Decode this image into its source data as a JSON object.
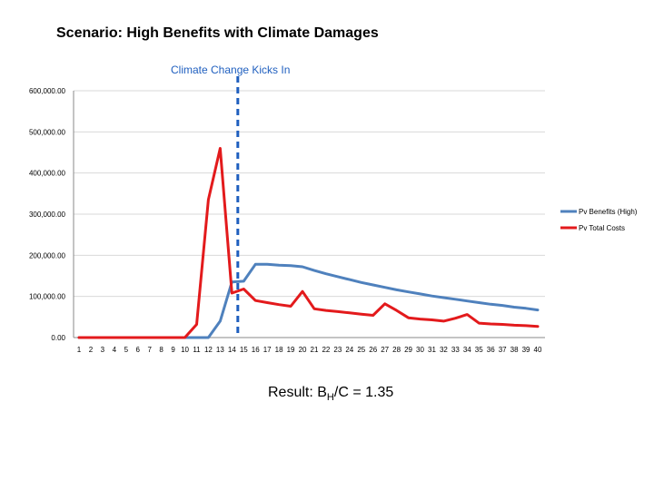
{
  "title": "Scenario: High Benefits with Climate Damages",
  "annotation": {
    "label": "Climate Change Kicks In",
    "x": 14.5
  },
  "result": {
    "prefix": "Result: B",
    "subscript": "H",
    "suffix": "/C = 1.35"
  },
  "colors": {
    "benefits": "#4f81bd",
    "costs": "#e31a1c",
    "annotation": "#1f5fbf",
    "grid": "#d9d9d9"
  },
  "chart_data": {
    "type": "line",
    "title": "Scenario: High Benefits with Climate Damages",
    "xlabel": "",
    "ylabel": "",
    "x": [
      1,
      2,
      3,
      4,
      5,
      6,
      7,
      8,
      9,
      10,
      11,
      12,
      13,
      14,
      15,
      16,
      17,
      18,
      19,
      20,
      21,
      22,
      23,
      24,
      25,
      26,
      27,
      28,
      29,
      30,
      31,
      32,
      33,
      34,
      35,
      36,
      37,
      38,
      39,
      40
    ],
    "ylim": [
      0,
      600000
    ],
    "yticks": [
      0,
      100000,
      200000,
      300000,
      400000,
      500000,
      600000
    ],
    "ytick_labels": [
      "0.00",
      "100,000.00",
      "200,000.00",
      "300,000.00",
      "400,000.00",
      "500,000.00",
      "600,000.00"
    ],
    "xtick_labels": [
      "1",
      "2",
      "3",
      "4",
      "5",
      "6",
      "7",
      "8",
      "9",
      "10",
      "11",
      "12",
      "13",
      "14",
      "15",
      "16",
      "17",
      "18",
      "19",
      "20",
      "21",
      "22",
      "23",
      "24",
      "25",
      "26",
      "27",
      "28",
      "29",
      "30",
      "31",
      "32",
      "33",
      "34",
      "35",
      "36",
      "37",
      "38",
      "39",
      "40"
    ],
    "grid": true,
    "legend_position": "right",
    "series": [
      {
        "name": "Pv Benefits (High)",
        "color": "#4f81bd",
        "values": [
          0,
          0,
          0,
          0,
          0,
          0,
          0,
          0,
          0,
          0,
          0,
          0,
          40000,
          135000,
          137000,
          178000,
          178000,
          176000,
          175000,
          172000,
          163000,
          155000,
          148000,
          141000,
          134000,
          128000,
          122000,
          116000,
          111000,
          106000,
          101000,
          97000,
          93000,
          89000,
          85000,
          81000,
          78000,
          74000,
          71000,
          67000
        ]
      },
      {
        "name": "Pv Total Costs",
        "color": "#e31a1c",
        "values": [
          0,
          0,
          0,
          0,
          0,
          0,
          0,
          0,
          0,
          0,
          32000,
          335000,
          460000,
          108000,
          118000,
          90000,
          85000,
          80000,
          76000,
          112000,
          70000,
          66000,
          63000,
          60000,
          57000,
          54000,
          82000,
          66000,
          48000,
          45000,
          43000,
          40000,
          47000,
          56000,
          35000,
          33000,
          32000,
          30000,
          29000,
          27000
        ]
      }
    ]
  }
}
